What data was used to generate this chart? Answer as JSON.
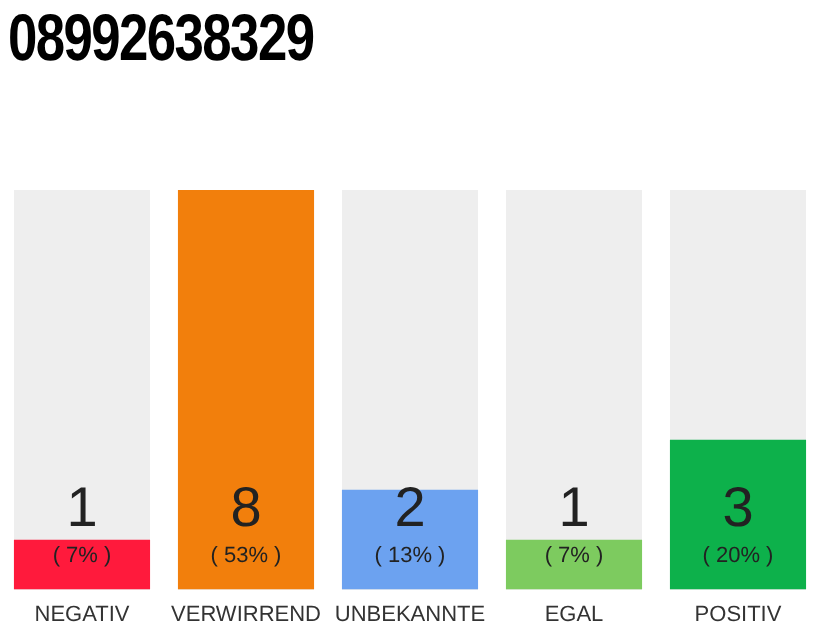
{
  "chart_data": {
    "type": "bar",
    "title": "08992638329",
    "categories": [
      "NEGATIV",
      "VERWIRREND",
      "UNBEKANNTE",
      "EGAL",
      "POSITIV"
    ],
    "values": [
      1,
      8,
      2,
      1,
      3
    ],
    "colors": [
      "#ff1a3c",
      "#f27f0c",
      "#6ca2f0",
      "#7dcb5f",
      "#0db14b"
    ],
    "data_labels": true,
    "annotations": [
      "( 7% )",
      "( 53% )",
      "( 13% )",
      "( 7% )",
      "( 20% )"
    ],
    "grid": false,
    "legend": false
  }
}
